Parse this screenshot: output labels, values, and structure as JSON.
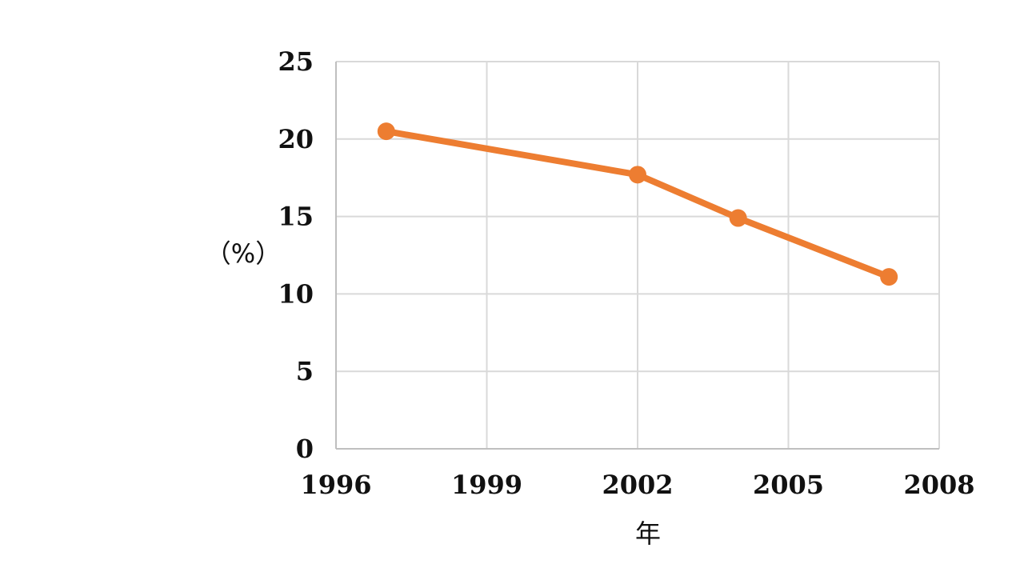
{
  "chart_data": {
    "type": "line",
    "title": "",
    "xlabel": "年",
    "ylabel": "（%）",
    "xlim": [
      1996,
      2008
    ],
    "ylim": [
      0,
      25
    ],
    "xticks": [
      1996,
      1999,
      2002,
      2005,
      2008
    ],
    "yticks": [
      0,
      5,
      10,
      15,
      20,
      25
    ],
    "grid": true,
    "legend": "none",
    "series": [
      {
        "color": "#ED7D31",
        "x": [
          1997,
          2002,
          2004,
          2007
        ],
        "y": [
          20.5,
          17.7,
          14.9,
          11.1
        ]
      }
    ]
  }
}
